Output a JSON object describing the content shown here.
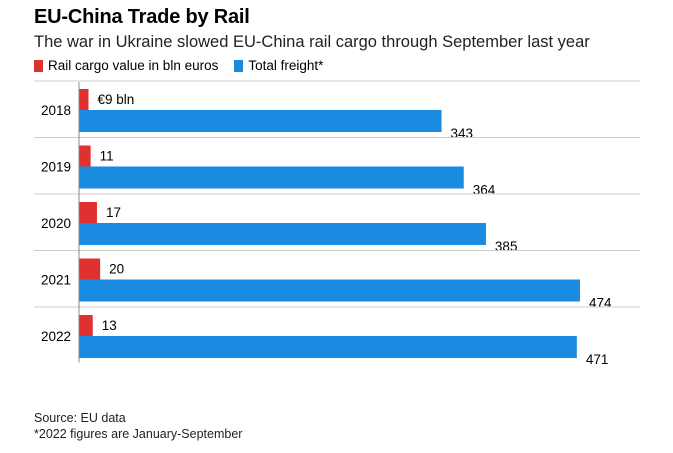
{
  "title": "EU-China Trade by Rail",
  "subtitle": "The war in Ukraine slowed EU-China rail cargo through September last year",
  "legend": [
    {
      "label": "Rail cargo value in bln euros",
      "color": "#e03131"
    },
    {
      "label": "Total freight*",
      "color": "#1a8be0"
    }
  ],
  "chart_data": {
    "type": "bar",
    "orientation": "horizontal",
    "categories": [
      "2018",
      "2019",
      "2020",
      "2021",
      "2022"
    ],
    "series": [
      {
        "name": "Rail cargo value in bln euros",
        "color": "#e03131",
        "values": [
          9,
          11,
          17,
          20,
          13
        ],
        "value_labels": [
          "€9 bln",
          "11",
          "17",
          "20",
          "13"
        ]
      },
      {
        "name": "Total freight*",
        "color": "#1a8be0",
        "values": [
          343,
          364,
          385,
          474,
          471
        ],
        "value_labels": [
          "343",
          "364",
          "385",
          "474",
          "471"
        ]
      }
    ],
    "xlim": [
      0,
      500
    ],
    "grid": false,
    "legend_position": "top-left"
  },
  "source": {
    "line1": "Source: EU data",
    "line2": "*2022 figures are January-September"
  }
}
